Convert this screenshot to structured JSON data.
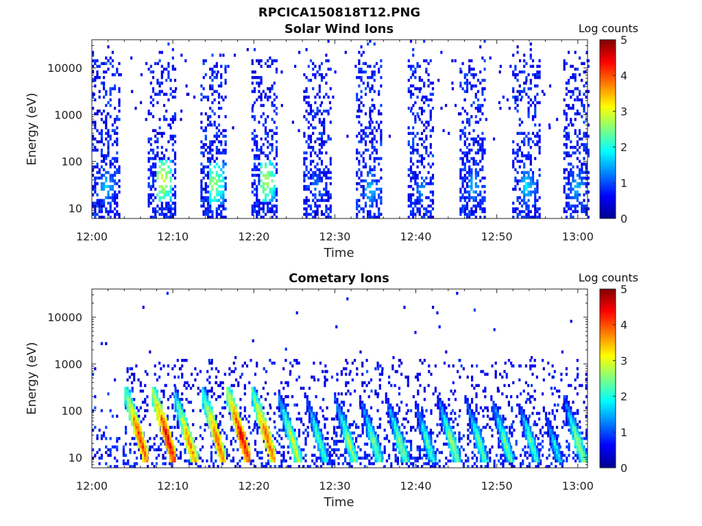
{
  "figure_title": "RPCICA150818T12.PNG",
  "chart_data": [
    {
      "type": "heatmap",
      "title": "Solar Wind Ions",
      "xlabel": "Time",
      "ylabel": "Energy (eV)",
      "x_ticks": [
        "12:00",
        "12:10",
        "12:20",
        "12:30",
        "12:40",
        "12:50",
        "13:00"
      ],
      "x_range": [
        "12:00",
        "13:01"
      ],
      "y_scale": "log",
      "y_ticks": [
        "10",
        "100",
        "1000",
        "10000"
      ],
      "ylim": [
        6,
        40000
      ],
      "colorbar": {
        "title": "Log counts",
        "ticks": [
          "0",
          "1",
          "2",
          "3",
          "4",
          "5"
        ],
        "range": [
          0,
          5
        ]
      },
      "scans": [
        {
          "start_min": 0.0,
          "end_min": 3.4,
          "peak_energy_eV": 30,
          "peak_log_counts": 1.6
        },
        {
          "start_min": 6.9,
          "end_min": 10.2,
          "peak_energy_eV": 40,
          "peak_log_counts": 2.9
        },
        {
          "start_min": 13.4,
          "end_min": 16.6,
          "peak_energy_eV": 35,
          "peak_log_counts": 2.6
        },
        {
          "start_min": 19.7,
          "end_min": 22.9,
          "peak_energy_eV": 40,
          "peak_log_counts": 2.7
        },
        {
          "start_min": 26.1,
          "end_min": 29.4,
          "peak_energy_eV": 30,
          "peak_log_counts": 1.2
        },
        {
          "start_min": 32.6,
          "end_min": 35.8,
          "peak_energy_eV": 25,
          "peak_log_counts": 1.6
        },
        {
          "start_min": 39.0,
          "end_min": 42.2,
          "peak_energy_eV": 25,
          "peak_log_counts": 1.3
        },
        {
          "start_min": 45.4,
          "end_min": 48.6,
          "peak_energy_eV": 30,
          "peak_log_counts": 1.5
        },
        {
          "start_min": 51.9,
          "end_min": 55.2,
          "peak_energy_eV": 30,
          "peak_log_counts": 1.7
        },
        {
          "start_min": 58.2,
          "end_min": 61.2,
          "peak_energy_eV": 30,
          "peak_log_counts": 1.5
        }
      ]
    },
    {
      "type": "heatmap",
      "title": "Cometary Ions",
      "xlabel": "Time",
      "ylabel": "Energy (eV)",
      "x_ticks": [
        "12:00",
        "12:10",
        "12:20",
        "12:30",
        "12:40",
        "12:50",
        "13:00"
      ],
      "x_range": [
        "12:00",
        "13:01"
      ],
      "y_scale": "log",
      "y_ticks": [
        "10",
        "100",
        "1000",
        "10000"
      ],
      "ylim": [
        6,
        40000
      ],
      "colorbar": {
        "title": "Log counts",
        "ticks": [
          "0",
          "1",
          "2",
          "3",
          "4",
          "5"
        ],
        "range": [
          0,
          5
        ]
      },
      "streaks": [
        {
          "time_min": 5.6,
          "peak_energy_eV": 35,
          "peak_log_counts": 4.0
        },
        {
          "time_min": 9.0,
          "peak_energy_eV": 35,
          "peak_log_counts": 4.3
        },
        {
          "time_min": 11.8,
          "peak_energy_eV": 25,
          "peak_log_counts": 3.6
        },
        {
          "time_min": 15.2,
          "peak_energy_eV": 30,
          "peak_log_counts": 3.8
        },
        {
          "time_min": 18.2,
          "peak_energy_eV": 35,
          "peak_log_counts": 4.3
        },
        {
          "time_min": 21.3,
          "peak_energy_eV": 35,
          "peak_log_counts": 3.8
        },
        {
          "time_min": 24.6,
          "peak_energy_eV": 25,
          "peak_log_counts": 2.9
        },
        {
          "time_min": 27.8,
          "peak_energy_eV": 30,
          "peak_log_counts": 2.2
        },
        {
          "time_min": 31.5,
          "peak_energy_eV": 25,
          "peak_log_counts": 2.6
        },
        {
          "time_min": 34.6,
          "peak_energy_eV": 25,
          "peak_log_counts": 2.4
        },
        {
          "time_min": 37.8,
          "peak_energy_eV": 25,
          "peak_log_counts": 2.5
        },
        {
          "time_min": 41.2,
          "peak_energy_eV": 25,
          "peak_log_counts": 2.2
        },
        {
          "time_min": 44.2,
          "peak_energy_eV": 25,
          "peak_log_counts": 2.6
        },
        {
          "time_min": 47.6,
          "peak_energy_eV": 25,
          "peak_log_counts": 2.3
        },
        {
          "time_min": 50.8,
          "peak_energy_eV": 25,
          "peak_log_counts": 2.4
        },
        {
          "time_min": 54.0,
          "peak_energy_eV": 25,
          "peak_log_counts": 2.2
        },
        {
          "time_min": 57.0,
          "peak_energy_eV": 20,
          "peak_log_counts": 1.8
        },
        {
          "time_min": 59.8,
          "peak_energy_eV": 25,
          "peak_log_counts": 2.6
        }
      ]
    }
  ]
}
